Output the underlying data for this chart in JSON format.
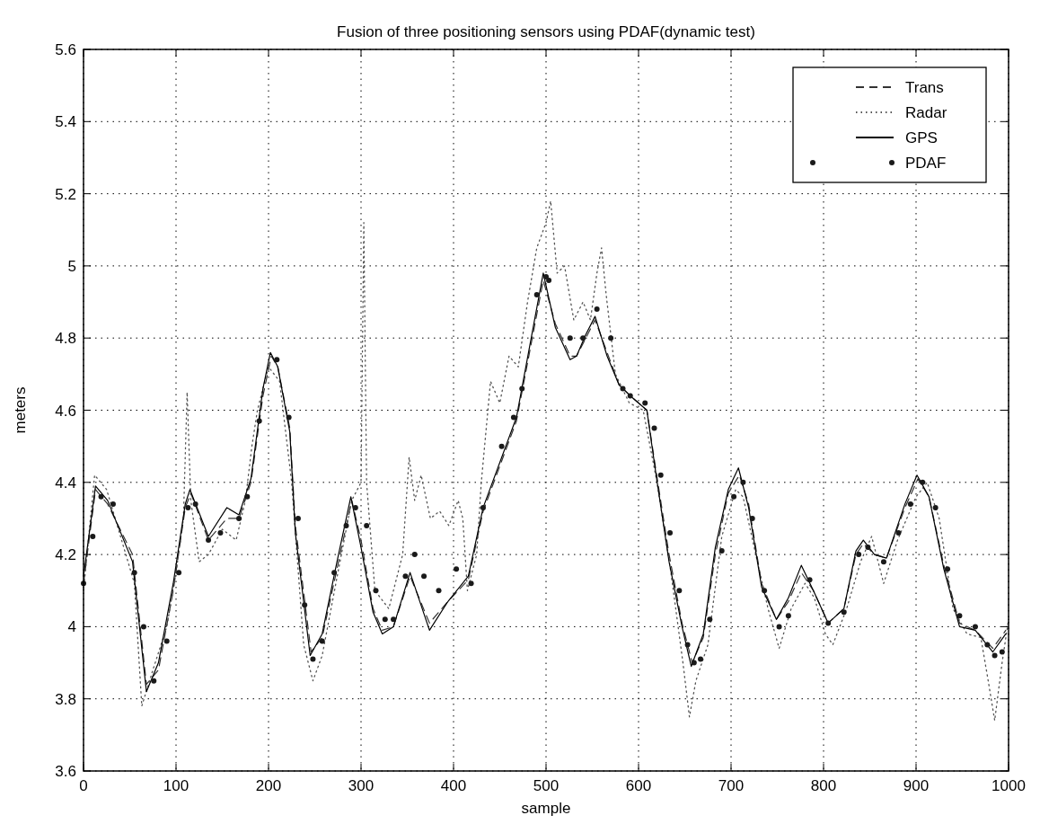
{
  "chart_data": {
    "type": "line",
    "title": "Fusion of three positioning sensors using PDAF(dynamic test)",
    "xlabel": "sample",
    "ylabel": "meters",
    "xlim": [
      0,
      1000
    ],
    "xticks": [
      0,
      100,
      200,
      300,
      400,
      500,
      600,
      700,
      800,
      900,
      1000
    ],
    "ylim": [
      3.6,
      5.6
    ],
    "yticks": [
      3.6,
      3.8,
      4,
      4.2,
      4.4,
      4.6,
      4.8,
      5,
      5.2,
      5.4,
      5.6
    ],
    "grid": true,
    "legend": "top right",
    "series": [
      {
        "name": "Trans",
        "color": "#333333",
        "line_style": "dashed",
        "x": [
          0,
          13,
          26,
          53,
          68,
          81,
          97,
          110,
          116,
          135,
          155,
          168,
          181,
          194,
          203,
          210,
          223,
          229,
          246,
          258,
          274,
          290,
          300,
          313,
          323,
          335,
          353,
          374,
          394,
          416,
          432,
          468,
          497,
          510,
          526,
          533,
          543,
          553,
          566,
          579,
          591,
          609,
          619,
          633,
          647,
          658,
          670,
          683,
          697,
          709,
          719,
          733,
          749,
          762,
          776,
          789,
          805,
          822,
          835,
          843,
          855,
          868,
          888,
          902,
          914,
          930,
          947,
          964,
          983,
          997
        ],
        "values": [
          4.12,
          4.38,
          4.34,
          4.2,
          3.84,
          3.88,
          4.1,
          4.33,
          4.37,
          4.24,
          4.3,
          4.3,
          4.4,
          4.64,
          4.75,
          4.72,
          4.55,
          4.28,
          3.93,
          3.97,
          4.16,
          4.35,
          4.24,
          4.05,
          3.99,
          4.0,
          4.14,
          4.01,
          4.07,
          4.13,
          4.32,
          4.57,
          4.96,
          4.84,
          4.75,
          4.75,
          4.8,
          4.85,
          4.76,
          4.67,
          4.64,
          4.6,
          4.43,
          4.2,
          4.01,
          3.9,
          3.97,
          4.2,
          4.37,
          4.42,
          4.34,
          4.12,
          4.02,
          4.07,
          4.15,
          4.1,
          4.01,
          4.05,
          4.2,
          4.23,
          4.2,
          4.19,
          4.33,
          4.41,
          4.36,
          4.17,
          4.01,
          3.99,
          3.94,
          3.99
        ]
      },
      {
        "name": "Radar",
        "color": "#555555",
        "line_style": "dotted",
        "x": [
          0,
          12,
          25,
          40,
          55,
          63,
          75,
          90,
          100,
          108,
          112,
          116,
          125,
          135,
          150,
          165,
          175,
          182,
          188,
          200,
          212,
          225,
          238,
          248,
          258,
          275,
          290,
          300,
          303,
          306,
          315,
          330,
          345,
          352,
          358,
          365,
          375,
          385,
          395,
          405,
          410,
          415,
          425,
          430,
          440,
          450,
          460,
          470,
          480,
          490,
          500,
          505,
          512,
          520,
          530,
          540,
          548,
          555,
          560,
          565,
          575,
          590,
          605,
          620,
          635,
          648,
          655,
          662,
          675,
          690,
          705,
          713,
          725,
          740,
          752,
          765,
          780,
          790,
          802,
          810,
          825,
          840,
          852,
          865,
          880,
          900,
          912,
          925,
          940,
          955,
          970,
          978,
          985,
          993,
          1000
        ],
        "values": [
          4.1,
          4.42,
          4.38,
          4.25,
          4.12,
          3.78,
          3.88,
          4.0,
          4.15,
          4.3,
          4.65,
          4.35,
          4.18,
          4.2,
          4.27,
          4.24,
          4.35,
          4.5,
          4.6,
          4.72,
          4.68,
          4.4,
          3.95,
          3.85,
          3.92,
          4.15,
          4.35,
          4.4,
          5.12,
          4.4,
          4.1,
          4.05,
          4.2,
          4.47,
          4.35,
          4.42,
          4.3,
          4.32,
          4.28,
          4.35,
          4.3,
          4.1,
          4.2,
          4.4,
          4.68,
          4.62,
          4.75,
          4.72,
          4.9,
          5.05,
          5.12,
          5.18,
          4.98,
          5.0,
          4.85,
          4.9,
          4.85,
          4.98,
          5.05,
          4.92,
          4.7,
          4.62,
          4.6,
          4.4,
          4.15,
          3.9,
          3.75,
          3.85,
          3.95,
          4.25,
          4.38,
          4.36,
          4.22,
          4.05,
          3.94,
          4.05,
          4.12,
          4.08,
          3.98,
          3.95,
          4.05,
          4.18,
          4.25,
          4.12,
          4.24,
          4.36,
          4.4,
          4.3,
          4.05,
          3.98,
          3.97,
          3.85,
          3.74,
          3.9,
          4.02
        ]
      },
      {
        "name": "GPS",
        "color": "#000000",
        "line_style": "solid",
        "x": [
          0,
          13,
          26,
          53,
          68,
          81,
          97,
          110,
          115,
          135,
          155,
          168,
          181,
          194,
          202,
          210,
          223,
          229,
          245,
          258,
          274,
          289,
          300,
          313,
          323,
          335,
          353,
          374,
          394,
          416,
          432,
          468,
          497,
          510,
          526,
          533,
          543,
          553,
          566,
          579,
          591,
          609,
          619,
          633,
          647,
          657,
          670,
          683,
          697,
          708,
          719,
          733,
          749,
          762,
          776,
          789,
          805,
          822,
          835,
          843,
          855,
          868,
          888,
          901,
          914,
          930,
          947,
          964,
          983,
          997
        ],
        "values": [
          4.14,
          4.39,
          4.35,
          4.18,
          3.82,
          3.9,
          4.12,
          4.34,
          4.38,
          4.25,
          4.33,
          4.31,
          4.41,
          4.66,
          4.76,
          4.72,
          4.54,
          4.26,
          3.92,
          3.98,
          4.18,
          4.36,
          4.22,
          4.04,
          3.98,
          4.0,
          4.15,
          3.99,
          4.07,
          4.14,
          4.33,
          4.58,
          4.98,
          4.83,
          4.74,
          4.75,
          4.81,
          4.86,
          4.75,
          4.67,
          4.64,
          4.6,
          4.42,
          4.18,
          4.0,
          3.89,
          3.98,
          4.22,
          4.38,
          4.44,
          4.33,
          4.11,
          4.02,
          4.08,
          4.17,
          4.1,
          4.01,
          4.05,
          4.21,
          4.24,
          4.2,
          4.19,
          4.34,
          4.42,
          4.36,
          4.16,
          4.0,
          3.99,
          3.93,
          3.98
        ]
      },
      {
        "name": "PDAF",
        "color": "#1a1a1a",
        "type": "scatter",
        "marker": "circle",
        "x": [
          0,
          10,
          19,
          32,
          55,
          65,
          76,
          90,
          103,
          113,
          121,
          135,
          148,
          168,
          177,
          190,
          209,
          222,
          232,
          239,
          248,
          258,
          271,
          284,
          294,
          306,
          316,
          326,
          335,
          348,
          358,
          368,
          384,
          403,
          419,
          432,
          452,
          465,
          474,
          490,
          500,
          503,
          526,
          540,
          555,
          570,
          583,
          591,
          607,
          617,
          624,
          634,
          644,
          653,
          660,
          667,
          677,
          690,
          703,
          713,
          723,
          736,
          752,
          762,
          785,
          805,
          822,
          838,
          848,
          865,
          881,
          894,
          907,
          921,
          934,
          947,
          964,
          977,
          985,
          993
        ],
        "values": [
          4.12,
          4.25,
          4.36,
          4.34,
          4.15,
          4.0,
          3.85,
          3.96,
          4.15,
          4.33,
          4.34,
          4.24,
          4.26,
          4.3,
          4.36,
          4.57,
          4.74,
          4.58,
          4.3,
          4.06,
          3.91,
          3.96,
          4.15,
          4.28,
          4.33,
          4.28,
          4.1,
          4.02,
          4.02,
          4.14,
          4.2,
          4.14,
          4.1,
          4.16,
          4.12,
          4.33,
          4.5,
          4.58,
          4.66,
          4.92,
          4.97,
          4.96,
          4.8,
          4.8,
          4.88,
          4.8,
          4.66,
          4.64,
          4.62,
          4.55,
          4.42,
          4.26,
          4.1,
          3.95,
          3.9,
          3.91,
          4.02,
          4.21,
          4.36,
          4.4,
          4.3,
          4.1,
          4.0,
          4.03,
          4.13,
          4.01,
          4.04,
          4.2,
          4.22,
          4.18,
          4.26,
          4.34,
          4.4,
          4.33,
          4.16,
          4.03,
          4.0,
          3.95,
          3.92,
          3.93
        ]
      }
    ]
  }
}
